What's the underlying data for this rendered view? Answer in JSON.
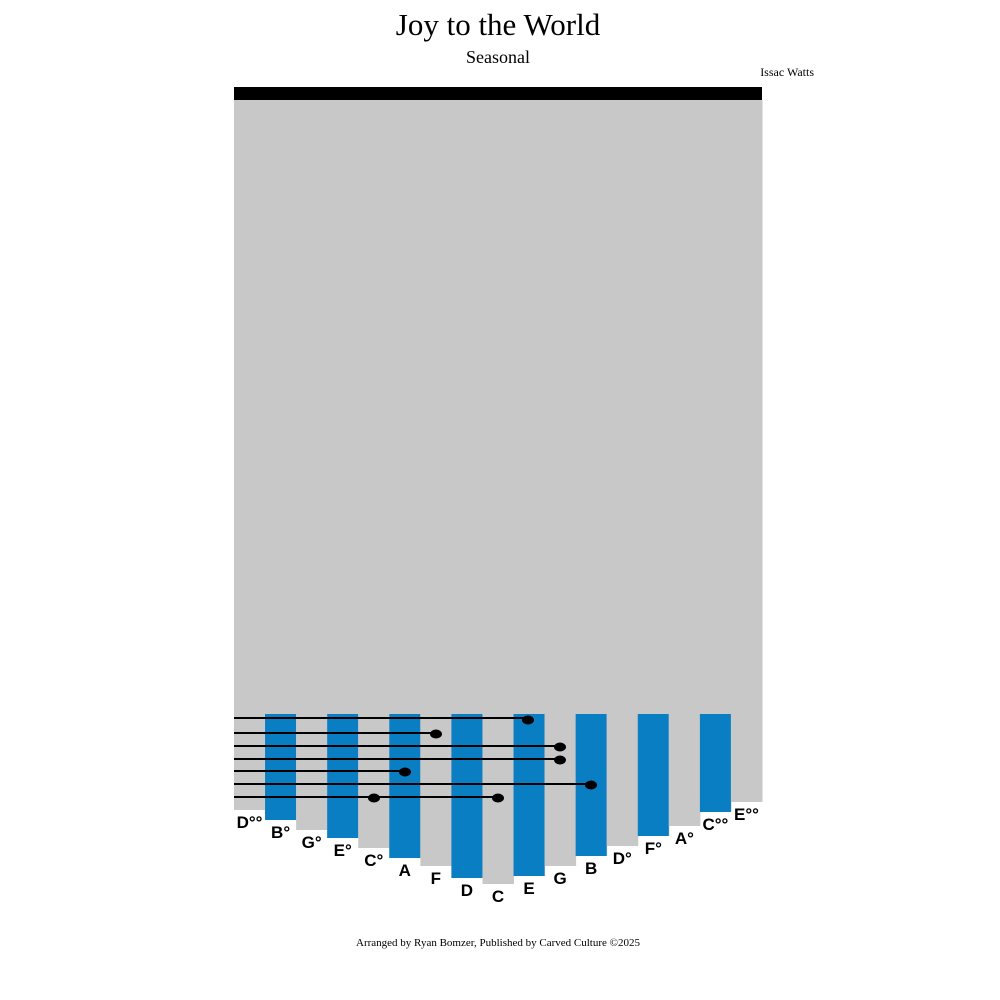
{
  "header": {
    "title": "Joy to the World",
    "subtitle": "Seasonal",
    "composer": "Issac Watts"
  },
  "keys": [
    "D°°",
    "B°",
    "G°",
    "E°",
    "C°",
    "A",
    "F",
    "D",
    "C",
    "E",
    "G",
    "B",
    "D°",
    "F°",
    "A°",
    "C°°",
    "E°°"
  ],
  "footer": "Arranged by Ryan Bomzer, Published by Carved Culture ©2025"
}
